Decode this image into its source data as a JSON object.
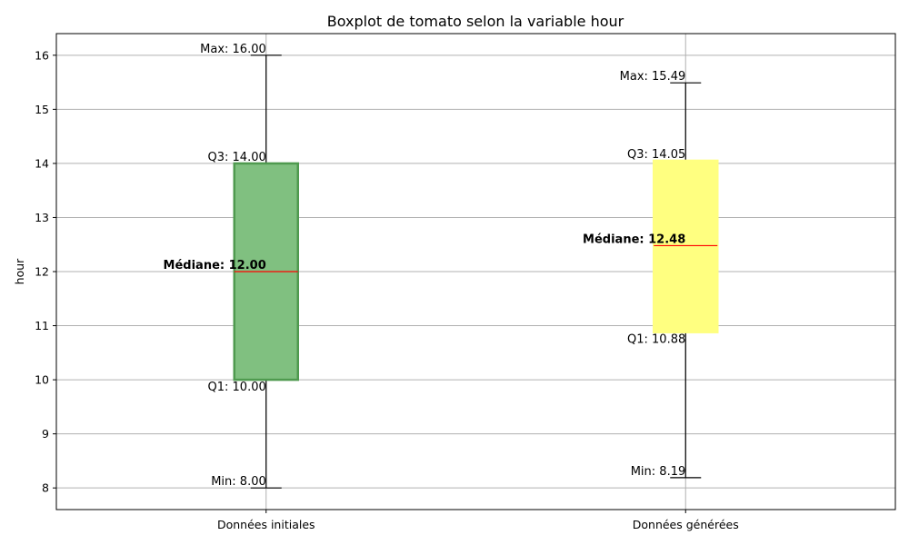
{
  "chart_data": {
    "type": "box",
    "title": "Boxplot de tomato selon la variable hour",
    "xlabel": "",
    "ylabel": "hour",
    "ylim": [
      7.6,
      16.4
    ],
    "yticks": [
      8,
      9,
      10,
      11,
      12,
      13,
      14,
      15,
      16
    ],
    "grid": true,
    "categories": [
      "Données initiales",
      "Données générées"
    ],
    "boxes": [
      {
        "category": "Données initiales",
        "min": 8.0,
        "q1": 10.0,
        "median": 12.0,
        "q3": 14.0,
        "max": 16.0,
        "labels": {
          "max": "Max: 16.00",
          "q3": "Q3: 14.00",
          "median": "Médiane: 12.00",
          "q1": "Q1: 10.00",
          "min": "Min: 8.00"
        },
        "fill": "#80c080",
        "edge": "#4f9a4f"
      },
      {
        "category": "Données générées",
        "min": 8.19,
        "q1": 10.88,
        "median": 12.48,
        "q3": 14.05,
        "max": 15.49,
        "labels": {
          "max": "Max: 15.49",
          "q3": "Q3: 14.05",
          "median": "Médiane: 12.48",
          "q1": "Q1: 10.88",
          "min": "Min: 8.19"
        },
        "fill": "#ffff80",
        "edge": "#ffff80"
      }
    ],
    "median_color": "#ff0000"
  }
}
